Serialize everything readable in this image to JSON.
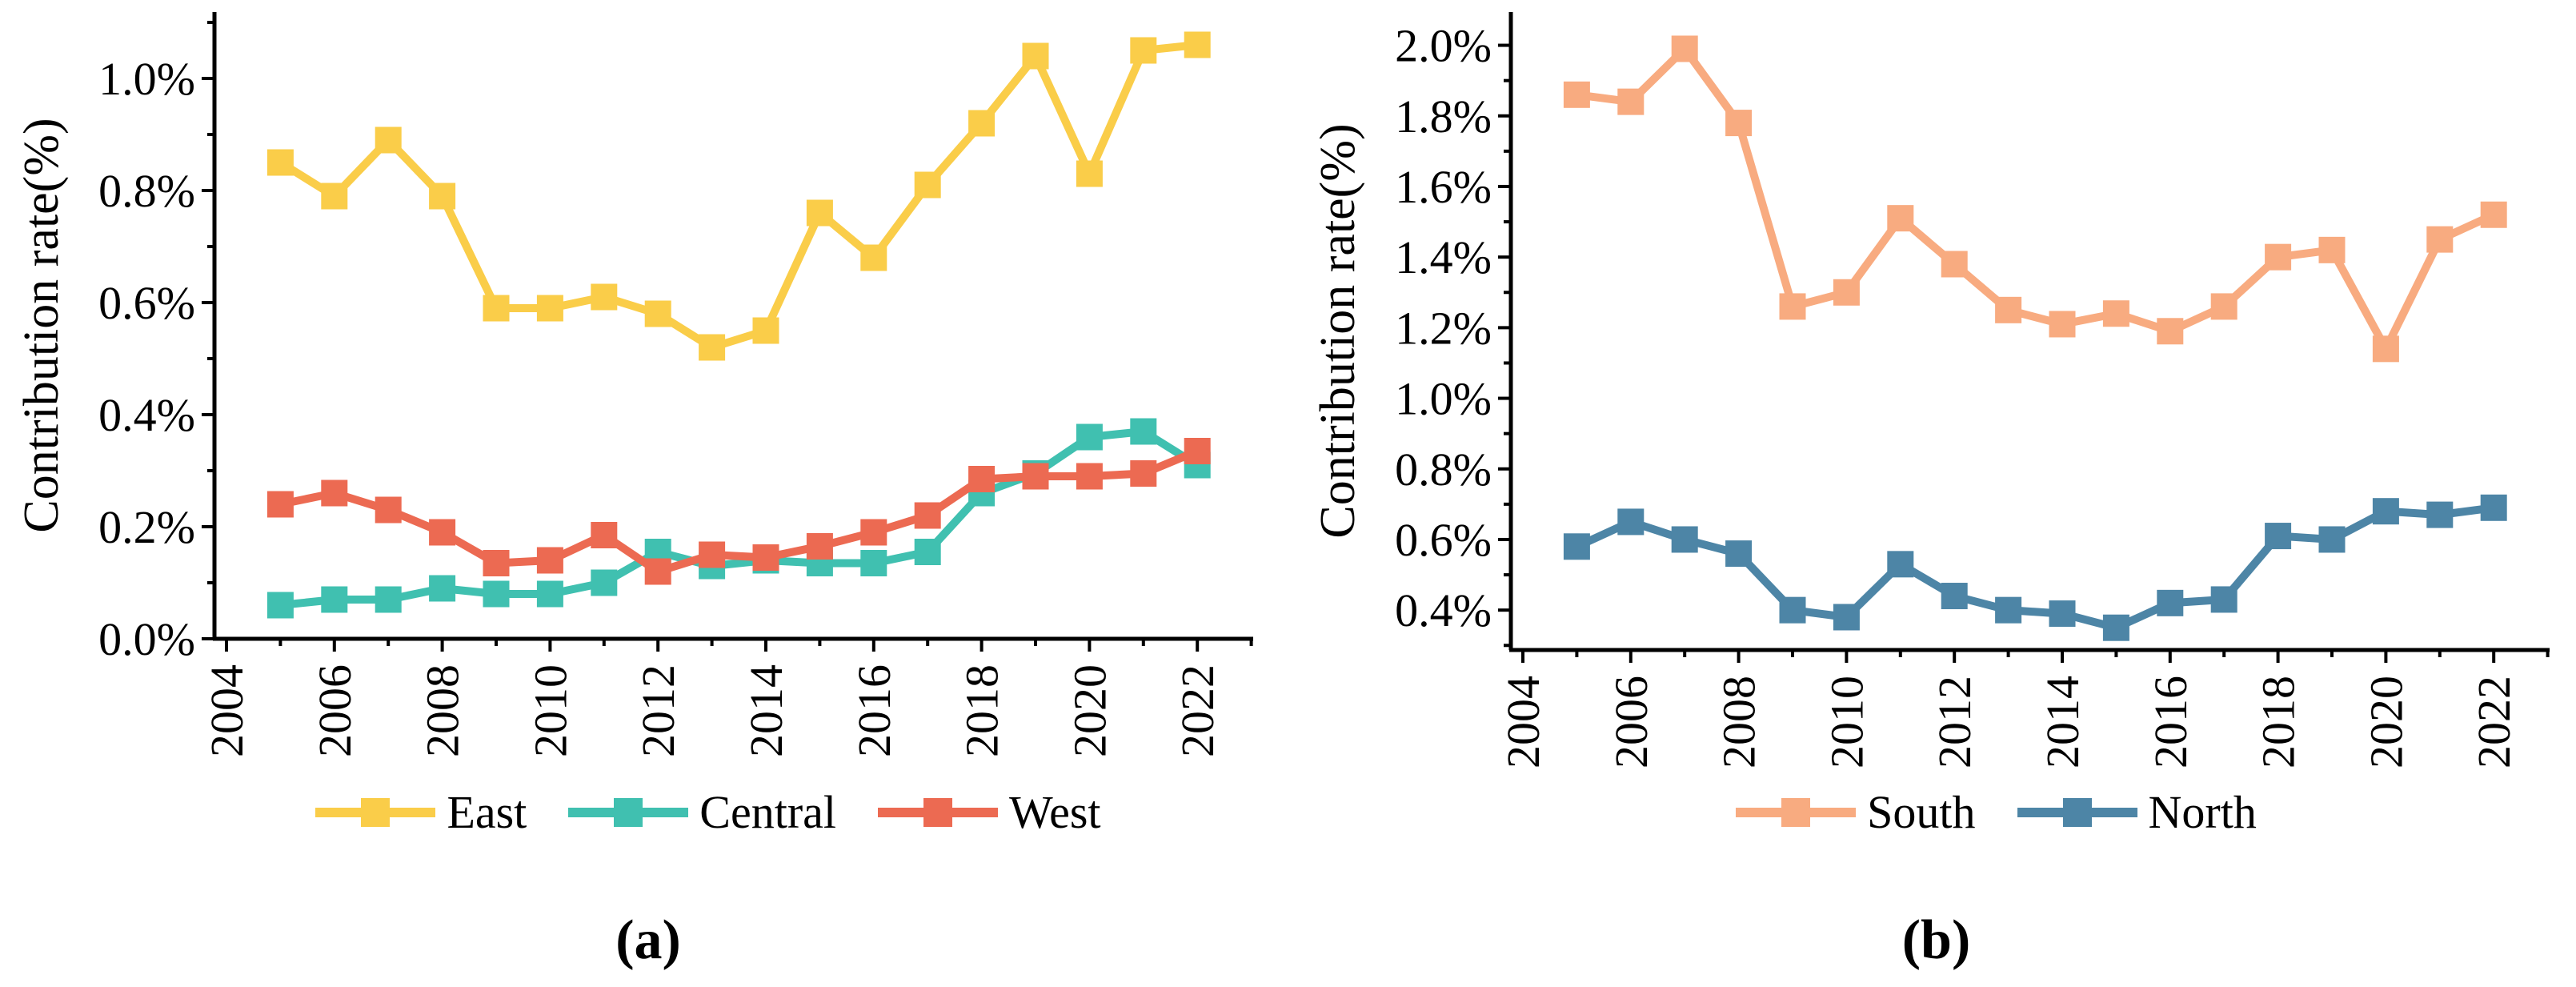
{
  "figure_background": "#ffffff",
  "text_color": "#000000",
  "axis_color": "#000000",
  "chart_data": [
    {
      "type": "line",
      "title": "",
      "caption": "(a)",
      "xlabel": "",
      "ylabel": "Contribution rate(%)",
      "marker": "square",
      "grid": false,
      "legend_position": "bottom",
      "x": [
        2005,
        2006,
        2007,
        2008,
        2009,
        2010,
        2011,
        2012,
        2013,
        2014,
        2015,
        2016,
        2017,
        2018,
        2019,
        2020,
        2021,
        2022
      ],
      "x_major_ticks": [
        2004,
        2006,
        2008,
        2010,
        2012,
        2014,
        2016,
        2018,
        2020,
        2022
      ],
      "x_tick_labels": [
        "2004",
        "2006",
        "2008",
        "2010",
        "2012",
        "2014",
        "2016",
        "2018",
        "2020",
        "2022"
      ],
      "x_minor_ticks": [
        2005,
        2007,
        2009,
        2011,
        2013,
        2015,
        2017,
        2019,
        2021,
        2023
      ],
      "xlim": [
        2003.8,
        2023.0
      ],
      "ylim": [
        0.0,
        1.12
      ],
      "y_major_values": [
        0.0,
        0.2,
        0.4,
        0.6,
        0.8,
        1.0
      ],
      "y_tick_labels": [
        "0.0%",
        "0.2%",
        "0.4%",
        "0.6%",
        "0.8%",
        "1.0%"
      ],
      "y_minor_values": [
        0.1,
        0.3,
        0.5,
        0.7,
        0.9,
        1.1
      ],
      "series": [
        {
          "name": "East",
          "color": "#FACD49",
          "values": [
            0.85,
            0.79,
            0.89,
            0.79,
            0.59,
            0.59,
            0.61,
            0.58,
            0.52,
            0.55,
            0.76,
            0.68,
            0.81,
            0.92,
            1.04,
            0.83,
            1.05,
            1.06
          ]
        },
        {
          "name": "Central",
          "color": "#40C0B0",
          "values": [
            0.06,
            0.07,
            0.07,
            0.09,
            0.08,
            0.08,
            0.1,
            0.155,
            0.13,
            0.14,
            0.135,
            0.135,
            0.155,
            0.26,
            0.295,
            0.36,
            0.37,
            0.31
          ]
        },
        {
          "name": "West",
          "color": "#EC6A52",
          "values": [
            0.24,
            0.26,
            0.23,
            0.19,
            0.135,
            0.14,
            0.185,
            0.12,
            0.15,
            0.145,
            0.165,
            0.19,
            0.22,
            0.285,
            0.29,
            0.29,
            0.295,
            0.335
          ]
        }
      ]
    },
    {
      "type": "line",
      "title": "",
      "caption": "(b)",
      "xlabel": "",
      "ylabel": "Contribution rate(%)",
      "marker": "square",
      "grid": false,
      "legend_position": "bottom",
      "x": [
        2005,
        2006,
        2007,
        2008,
        2009,
        2010,
        2011,
        2012,
        2013,
        2014,
        2015,
        2016,
        2017,
        2018,
        2019,
        2020,
        2021,
        2022
      ],
      "x_major_ticks": [
        2004,
        2006,
        2008,
        2010,
        2012,
        2014,
        2016,
        2018,
        2020,
        2022
      ],
      "x_tick_labels": [
        "2004",
        "2006",
        "2008",
        "2010",
        "2012",
        "2014",
        "2016",
        "2018",
        "2020",
        "2022"
      ],
      "x_minor_ticks": [
        2005,
        2007,
        2009,
        2011,
        2013,
        2015,
        2017,
        2019,
        2021,
        2023
      ],
      "xlim": [
        2003.8,
        2023.0
      ],
      "ylim": [
        0.29,
        2.09
      ],
      "y_major_values": [
        0.4,
        0.6,
        0.8,
        1.0,
        1.2,
        1.4,
        1.6,
        1.8,
        2.0
      ],
      "y_tick_labels": [
        "0.4%",
        "0.6%",
        "0.8%",
        "1.0%",
        "1.2%",
        "1.4%",
        "1.6%",
        "1.8%",
        "2.0%"
      ],
      "y_minor_values": [
        0.3,
        0.5,
        0.7,
        0.9,
        1.1,
        1.3,
        1.5,
        1.7,
        1.9
      ],
      "series": [
        {
          "name": "South",
          "color": "#F8AB80",
          "values": [
            1.86,
            1.84,
            1.99,
            1.78,
            1.26,
            1.3,
            1.51,
            1.38,
            1.25,
            1.21,
            1.24,
            1.19,
            1.26,
            1.4,
            1.42,
            1.14,
            1.45,
            1.52
          ]
        },
        {
          "name": "North",
          "color": "#4D85A6",
          "values": [
            0.58,
            0.65,
            0.6,
            0.56,
            0.4,
            0.38,
            0.53,
            0.44,
            0.4,
            0.39,
            0.35,
            0.42,
            0.43,
            0.61,
            0.6,
            0.68,
            0.67,
            0.69
          ]
        }
      ]
    }
  ]
}
